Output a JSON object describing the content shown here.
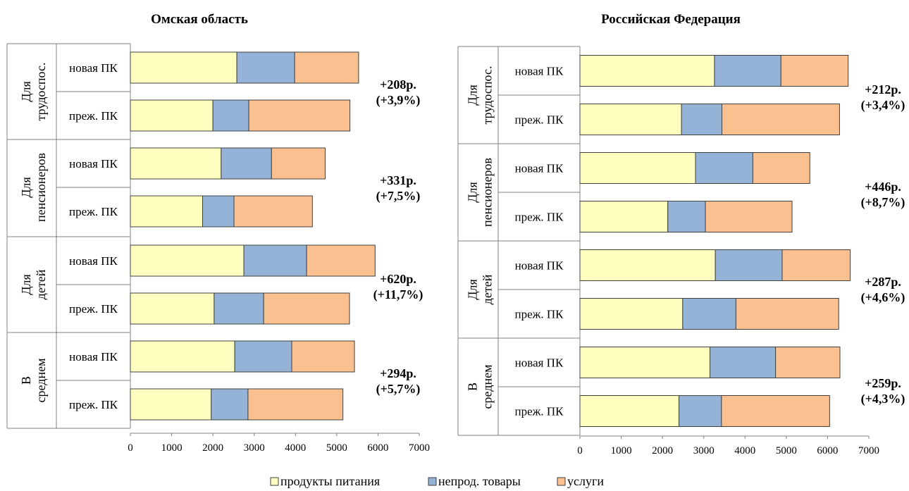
{
  "legend_items": [
    {
      "label": "продукты питания",
      "color": "#FFFFC0"
    },
    {
      "label": "непрод. товары",
      "color": "#95B3D7"
    },
    {
      "label": "услуги",
      "color": "#FAC090"
    }
  ],
  "chart_data": [
    {
      "type": "bar",
      "orientation": "horizontal",
      "stacked": true,
      "title": "Омская область",
      "xlim": [
        0,
        7000
      ],
      "xticks": [
        0,
        1000,
        2000,
        3000,
        4000,
        5000,
        6000,
        7000
      ],
      "groups": [
        {
          "label": "Для трудоспос.",
          "annotation_value": "+208р.",
          "annotation_pct": "(+3,9%)",
          "rows": [
            {
              "label": "новая ПК",
              "values": [
                2580,
                1400,
                1550
              ]
            },
            {
              "label": "преж. ПК",
              "values": [
                2000,
                870,
                2450
              ]
            }
          ]
        },
        {
          "label": "Для пенсионеров",
          "annotation_value": "+331р.",
          "annotation_pct": "(+7,5%)",
          "rows": [
            {
              "label": "новая ПК",
              "values": [
                2200,
                1220,
                1300
              ]
            },
            {
              "label": "преж. ПК",
              "values": [
                1750,
                760,
                1900
              ]
            }
          ]
        },
        {
          "label": "Для детей",
          "annotation_value": "+620р.",
          "annotation_pct": "(+11,7%)",
          "rows": [
            {
              "label": "новая ПК",
              "values": [
                2750,
                1520,
                1660
              ]
            },
            {
              "label": "преж. ПК",
              "values": [
                2030,
                1200,
                2080
              ]
            }
          ]
        },
        {
          "label": "В среднем",
          "annotation_value": "+294р.",
          "annotation_pct": "(+5,7%)",
          "rows": [
            {
              "label": "новая ПК",
              "values": [
                2530,
                1380,
                1520
              ]
            },
            {
              "label": "преж. ПК",
              "values": [
                1960,
                890,
                2300
              ]
            }
          ]
        }
      ],
      "series": [
        {
          "name": "продукты питания",
          "color": "#FFFFC0"
        },
        {
          "name": "непрод. товары",
          "color": "#95B3D7"
        },
        {
          "name": "услуги",
          "color": "#FAC090"
        }
      ]
    },
    {
      "type": "bar",
      "orientation": "horizontal",
      "stacked": true,
      "title": "Российская Федерация",
      "xlim": [
        0,
        7000
      ],
      "xticks": [
        0,
        1000,
        2000,
        3000,
        4000,
        5000,
        6000,
        7000
      ],
      "groups": [
        {
          "label": "Для трудоспос.",
          "annotation_value": "+212р.",
          "annotation_pct": "(+3,4%)",
          "rows": [
            {
              "label": "новая ПК",
              "values": [
                3260,
                1610,
                1630
              ]
            },
            {
              "label": "преж. ПК",
              "values": [
                2460,
                980,
                2850
              ]
            }
          ]
        },
        {
          "label": "Для пенсионеров",
          "annotation_value": "+446р.",
          "annotation_pct": "(+8,7%)",
          "rows": [
            {
              "label": "новая ПК",
              "values": [
                2800,
                1390,
                1380
              ]
            },
            {
              "label": "преж. ПК",
              "values": [
                2130,
                910,
                2100
              ]
            }
          ]
        },
        {
          "label": "Для детей",
          "annotation_value": "+287р.",
          "annotation_pct": "(+4,6%)",
          "rows": [
            {
              "label": "новая ПК",
              "values": [
                3280,
                1620,
                1650
              ]
            },
            {
              "label": "преж. ПК",
              "values": [
                2490,
                1290,
                2490
              ]
            }
          ]
        },
        {
          "label": "В среднем",
          "annotation_value": "+259р.",
          "annotation_pct": "(+4,3%)",
          "rows": [
            {
              "label": "новая ПК",
              "values": [
                3150,
                1590,
                1560
              ]
            },
            {
              "label": "преж. ПК",
              "values": [
                2400,
                1030,
                2620
              ]
            }
          ]
        }
      ],
      "series": [
        {
          "name": "продукты питания",
          "color": "#FFFFC0"
        },
        {
          "name": "непрод. товары",
          "color": "#95B3D7"
        },
        {
          "name": "услуги",
          "color": "#FAC090"
        }
      ]
    }
  ]
}
